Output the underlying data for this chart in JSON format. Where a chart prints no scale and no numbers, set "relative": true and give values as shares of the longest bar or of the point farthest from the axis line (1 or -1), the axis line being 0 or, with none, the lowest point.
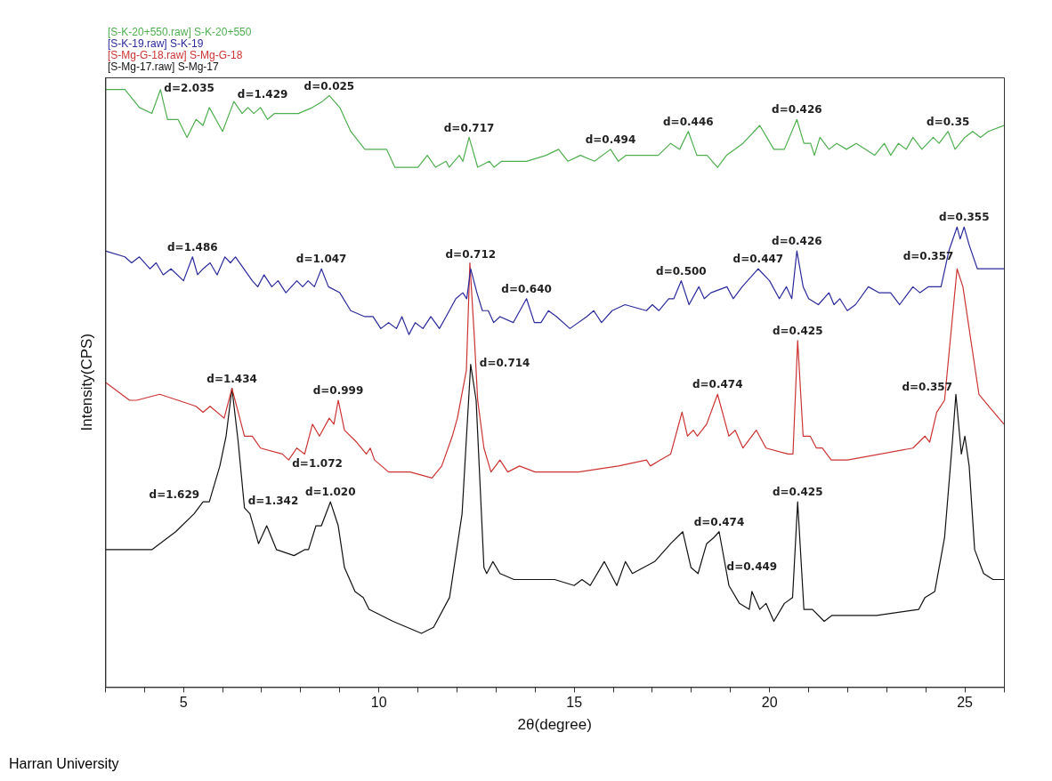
{
  "chart_data": {
    "type": "line",
    "relative": true,
    "xlabel": "2θ(degree)",
    "ylabel": "Intensity(CPS)",
    "legend": "top left",
    "marker": "none",
    "line_style": "solid",
    "xlim": [
      3,
      26
    ],
    "xticks": [
      {
        "value": 3,
        "label": null
      },
      {
        "value": 4,
        "label": null
      },
      5,
      {
        "value": 6,
        "label": null
      },
      {
        "value": 7,
        "label": null
      },
      {
        "value": 8,
        "label": null
      },
      {
        "value": 9,
        "label": null
      },
      10,
      {
        "value": 11,
        "label": null
      },
      {
        "value": 12,
        "label": null
      },
      {
        "value": 13,
        "label": null
      },
      {
        "value": 14,
        "label": null
      },
      15,
      {
        "value": 16,
        "label": null
      },
      {
        "value": 17,
        "label": null
      },
      {
        "value": 18,
        "label": null
      },
      {
        "value": 19,
        "label": null
      },
      20,
      {
        "value": 21,
        "label": null
      },
      {
        "value": 22,
        "label": null
      },
      {
        "value": 23,
        "label": null
      },
      {
        "value": 24,
        "label": null
      },
      25,
      {
        "value": 26,
        "label": null
      }
    ],
    "series": [
      {
        "name": "[S-K-20+550.raw] S-K-20+550",
        "color": "#4fae4f",
        "x": [
          3.0,
          3.5,
          3.87,
          4.19,
          4.41,
          4.59,
          4.86,
          5.09,
          5.32,
          5.5,
          5.66,
          6.0,
          6.29,
          6.5,
          6.65,
          6.8,
          6.97,
          7.15,
          7.33,
          7.7,
          7.94,
          8.3,
          8.55,
          8.73,
          9.0,
          9.28,
          9.64,
          10.2,
          10.41,
          11.0,
          11.24,
          11.45,
          11.72,
          11.8,
          12.06,
          12.15,
          12.31,
          12.53,
          12.83,
          12.95,
          13.14,
          13.78,
          14.28,
          14.6,
          14.84,
          15.16,
          15.52,
          15.93,
          16.13,
          16.33,
          16.6,
          16.9,
          17.15,
          17.47,
          17.7,
          17.92,
          18.14,
          18.4,
          18.67,
          18.9,
          19.32,
          19.75,
          20.11,
          20.38,
          20.7,
          20.88,
          21.05,
          21.15,
          21.29,
          21.52,
          21.72,
          21.97,
          22.22,
          22.69,
          22.94,
          23.1,
          23.3,
          23.5,
          23.67,
          23.9,
          24.19,
          24.34,
          24.57,
          24.75,
          25.0,
          25.2,
          25.4,
          25.6,
          26.0
        ],
        "values": [
          1.0,
          1.0,
          0.97,
          0.96,
          1.0,
          0.95,
          0.95,
          0.92,
          0.95,
          0.94,
          0.97,
          0.93,
          0.98,
          0.96,
          0.97,
          0.96,
          0.97,
          0.95,
          0.96,
          0.96,
          0.96,
          0.97,
          0.98,
          0.99,
          0.97,
          0.93,
          0.9,
          0.9,
          0.87,
          0.87,
          0.89,
          0.87,
          0.88,
          0.87,
          0.89,
          0.88,
          0.92,
          0.87,
          0.88,
          0.87,
          0.88,
          0.88,
          0.89,
          0.9,
          0.88,
          0.89,
          0.88,
          0.9,
          0.88,
          0.89,
          0.89,
          0.89,
          0.89,
          0.91,
          0.9,
          0.93,
          0.89,
          0.89,
          0.87,
          0.89,
          0.91,
          0.94,
          0.9,
          0.9,
          0.95,
          0.91,
          0.91,
          0.89,
          0.92,
          0.9,
          0.91,
          0.9,
          0.91,
          0.89,
          0.91,
          0.89,
          0.91,
          0.9,
          0.92,
          0.9,
          0.92,
          0.91,
          0.93,
          0.9,
          0.92,
          0.93,
          0.92,
          0.93,
          0.94
        ]
      },
      {
        "name": "[S-K-19.raw] S-K-19",
        "color": "#2a2a9c",
        "x": [
          3.0,
          3.5,
          3.67,
          3.87,
          4.14,
          4.3,
          4.48,
          4.68,
          5.0,
          5.23,
          5.36,
          5.5,
          5.68,
          5.86,
          6.06,
          6.2,
          6.33,
          6.76,
          6.9,
          7.06,
          7.26,
          7.42,
          7.62,
          7.9,
          8.05,
          8.19,
          8.35,
          8.53,
          8.71,
          9.0,
          9.28,
          9.64,
          9.85,
          10.05,
          10.25,
          10.45,
          10.59,
          10.77,
          10.93,
          11.13,
          11.33,
          11.55,
          11.72,
          11.97,
          12.15,
          12.25,
          12.35,
          12.51,
          12.65,
          12.8,
          12.94,
          13.1,
          13.44,
          13.78,
          13.98,
          14.15,
          14.34,
          14.55,
          14.89,
          15.32,
          15.5,
          15.7,
          15.97,
          16.3,
          16.85,
          17.0,
          17.17,
          17.42,
          17.55,
          17.74,
          17.94,
          18.19,
          18.33,
          18.5,
          18.91,
          19.07,
          19.3,
          19.71,
          20.0,
          20.25,
          20.43,
          20.57,
          20.7,
          20.86,
          21.0,
          21.25,
          21.52,
          21.65,
          21.8,
          21.99,
          22.2,
          22.53,
          22.8,
          23.1,
          23.33,
          23.67,
          23.85,
          24.07,
          24.39,
          24.59,
          24.8,
          24.88,
          24.98,
          25.11,
          25.32,
          25.52,
          26.0
        ],
        "values": [
          0.73,
          0.72,
          0.71,
          0.72,
          0.7,
          0.71,
          0.69,
          0.7,
          0.68,
          0.72,
          0.69,
          0.7,
          0.71,
          0.69,
          0.72,
          0.71,
          0.72,
          0.68,
          0.67,
          0.69,
          0.67,
          0.68,
          0.66,
          0.68,
          0.67,
          0.68,
          0.67,
          0.7,
          0.67,
          0.66,
          0.63,
          0.62,
          0.62,
          0.6,
          0.61,
          0.6,
          0.62,
          0.59,
          0.61,
          0.6,
          0.62,
          0.6,
          0.62,
          0.65,
          0.66,
          0.65,
          0.7,
          0.66,
          0.63,
          0.63,
          0.61,
          0.62,
          0.61,
          0.65,
          0.61,
          0.61,
          0.63,
          0.62,
          0.6,
          0.62,
          0.63,
          0.61,
          0.63,
          0.64,
          0.63,
          0.64,
          0.63,
          0.65,
          0.65,
          0.68,
          0.64,
          0.67,
          0.65,
          0.66,
          0.67,
          0.65,
          0.67,
          0.7,
          0.68,
          0.65,
          0.67,
          0.65,
          0.73,
          0.67,
          0.65,
          0.64,
          0.66,
          0.64,
          0.65,
          0.63,
          0.64,
          0.67,
          0.66,
          0.66,
          0.64,
          0.67,
          0.66,
          0.67,
          0.67,
          0.73,
          0.77,
          0.75,
          0.77,
          0.74,
          0.7,
          0.7,
          0.7
        ]
      },
      {
        "name": "[S-Mg-G-18.raw] S-Mg-G-18",
        "color": "#cc3333",
        "x": [
          3.0,
          3.62,
          3.8,
          4.39,
          4.86,
          5.32,
          5.5,
          5.68,
          6.04,
          6.24,
          6.4,
          6.56,
          6.76,
          6.97,
          7.53,
          7.69,
          7.9,
          8.1,
          8.3,
          8.48,
          8.73,
          8.85,
          8.96,
          9.12,
          9.43,
          9.68,
          9.78,
          9.89,
          10.25,
          10.8,
          11.36,
          11.61,
          11.88,
          12.01,
          12.24,
          12.33,
          12.44,
          12.53,
          12.69,
          12.87,
          13.1,
          13.3,
          13.6,
          14.0,
          15.11,
          16.13,
          16.85,
          16.95,
          17.2,
          17.47,
          17.76,
          17.9,
          18.05,
          18.15,
          18.39,
          18.67,
          18.96,
          19.12,
          19.32,
          19.66,
          19.91,
          20.47,
          20.6,
          20.72,
          20.86,
          21.04,
          21.2,
          21.35,
          21.58,
          22.0,
          23.67,
          23.98,
          24.1,
          24.28,
          24.48,
          24.8,
          24.95,
          25.2,
          25.36,
          25.61,
          26.0
        ],
        "values": [
          0.51,
          0.48,
          0.48,
          0.49,
          0.48,
          0.47,
          0.46,
          0.47,
          0.45,
          0.5,
          0.46,
          0.42,
          0.42,
          0.4,
          0.39,
          0.38,
          0.4,
          0.39,
          0.44,
          0.42,
          0.45,
          0.44,
          0.48,
          0.43,
          0.41,
          0.39,
          0.4,
          0.38,
          0.36,
          0.36,
          0.35,
          0.37,
          0.42,
          0.45,
          0.53,
          0.71,
          0.59,
          0.48,
          0.4,
          0.36,
          0.38,
          0.36,
          0.37,
          0.36,
          0.36,
          0.37,
          0.38,
          0.37,
          0.38,
          0.39,
          0.46,
          0.42,
          0.43,
          0.42,
          0.44,
          0.49,
          0.42,
          0.43,
          0.4,
          0.43,
          0.4,
          0.39,
          0.39,
          0.58,
          0.42,
          0.42,
          0.4,
          0.4,
          0.38,
          0.38,
          0.4,
          0.42,
          0.41,
          0.46,
          0.48,
          0.7,
          0.67,
          0.56,
          0.49,
          0.47,
          0.44
        ]
      },
      {
        "name": "[S-Mg-17.raw] S-Mg-17",
        "color": "#111111",
        "x": [
          3.0,
          3.5,
          4.19,
          4.8,
          5.27,
          5.5,
          5.66,
          5.93,
          6.09,
          6.24,
          6.4,
          6.56,
          6.7,
          6.92,
          7.13,
          7.38,
          7.83,
          8.1,
          8.2,
          8.39,
          8.53,
          8.76,
          8.96,
          9.12,
          9.39,
          9.6,
          9.75,
          10.36,
          11.09,
          11.4,
          11.81,
          12.13,
          12.35,
          12.49,
          12.69,
          12.76,
          12.92,
          13.1,
          13.46,
          14.5,
          15.0,
          15.2,
          15.41,
          15.77,
          16.09,
          16.31,
          16.49,
          17.06,
          17.47,
          17.78,
          17.99,
          18.17,
          18.39,
          18.57,
          18.71,
          18.96,
          19.23,
          19.48,
          19.55,
          19.75,
          19.91,
          20.11,
          20.38,
          20.59,
          20.72,
          20.88,
          21.1,
          21.4,
          21.6,
          22.74,
          23.82,
          23.98,
          24.23,
          24.48,
          24.68,
          24.77,
          24.91,
          25.0,
          25.11,
          25.25,
          25.48,
          25.72,
          26.0
        ],
        "values": [
          0.23,
          0.23,
          0.23,
          0.26,
          0.29,
          0.31,
          0.31,
          0.37,
          0.42,
          0.5,
          0.41,
          0.3,
          0.29,
          0.24,
          0.27,
          0.23,
          0.22,
          0.23,
          0.23,
          0.27,
          0.27,
          0.31,
          0.27,
          0.2,
          0.16,
          0.15,
          0.13,
          0.11,
          0.09,
          0.1,
          0.15,
          0.29,
          0.54,
          0.48,
          0.2,
          0.19,
          0.21,
          0.19,
          0.18,
          0.18,
          0.17,
          0.18,
          0.17,
          0.21,
          0.17,
          0.21,
          0.19,
          0.21,
          0.24,
          0.26,
          0.2,
          0.19,
          0.24,
          0.25,
          0.26,
          0.17,
          0.14,
          0.13,
          0.16,
          0.13,
          0.14,
          0.11,
          0.14,
          0.15,
          0.31,
          0.13,
          0.13,
          0.11,
          0.12,
          0.12,
          0.13,
          0.15,
          0.16,
          0.25,
          0.41,
          0.49,
          0.39,
          0.42,
          0.37,
          0.23,
          0.19,
          0.18,
          0.18
        ]
      }
    ],
    "annotations": [
      {
        "text": "d=2.035",
        "x": 4.41,
        "y": 1.0
      },
      {
        "text": "d=1.429",
        "x": 6.29,
        "y": 0.98
      },
      {
        "text": "d=0.025",
        "x": 8.73,
        "y": 0.99
      },
      {
        "text": "d=0.717",
        "x": 12.31,
        "y": 0.92
      },
      {
        "text": "d=0.494",
        "x": 15.93,
        "y": 0.9
      },
      {
        "text": "d=0.446",
        "x": 17.92,
        "y": 0.93
      },
      {
        "text": "d=0.426",
        "x": 20.7,
        "y": 0.95
      },
      {
        "text": "d=0.35",
        "x": 24.57,
        "y": 0.93
      },
      {
        "text": "d=1.486",
        "x": 5.23,
        "y": 0.72
      },
      {
        "text": "d=1.047",
        "x": 8.53,
        "y": 0.7
      },
      {
        "text": "d=0.712",
        "x": 12.35,
        "y": 0.7
      },
      {
        "text": "d=0.640",
        "x": 13.78,
        "y": 0.65
      },
      {
        "text": "d=0.500",
        "x": 17.74,
        "y": 0.68
      },
      {
        "text": "d=0.447",
        "x": 19.71,
        "y": 0.7
      },
      {
        "text": "d=0.426",
        "x": 20.7,
        "y": 0.73
      },
      {
        "text": "d=0.355",
        "x": 24.98,
        "y": 0.77
      },
      {
        "text": "d=1.434",
        "x": 6.24,
        "y": 0.5
      },
      {
        "text": "d=1.072",
        "x": 7.69,
        "y": 0.38
      },
      {
        "text": "d=0.999",
        "x": 8.96,
        "y": 0.48
      },
      {
        "text": "d=0.474",
        "x": 18.67,
        "y": 0.49
      },
      {
        "text": "d=0.425",
        "x": 20.72,
        "y": 0.58
      },
      {
        "text": "d=0.357",
        "x": 24.8,
        "y": 0.7
      },
      {
        "text": "d=1.629",
        "x": 5.5,
        "y": 0.31
      },
      {
        "text": "d=1.342",
        "x": 6.56,
        "y": 0.3
      },
      {
        "text": "d=1.020",
        "x": 8.76,
        "y": 0.31
      },
      {
        "text": "d=0.714",
        "x": 12.35,
        "y": 0.54
      },
      {
        "text": "d=0.474",
        "x": 18.71,
        "y": 0.26
      },
      {
        "text": "d=0.449",
        "x": 19.55,
        "y": 0.16
      },
      {
        "text": "d=0.425",
        "x": 20.72,
        "y": 0.31
      },
      {
        "text": "d=0.357",
        "x": 24.77,
        "y": 0.49
      },
      "Harran University"
    ]
  }
}
